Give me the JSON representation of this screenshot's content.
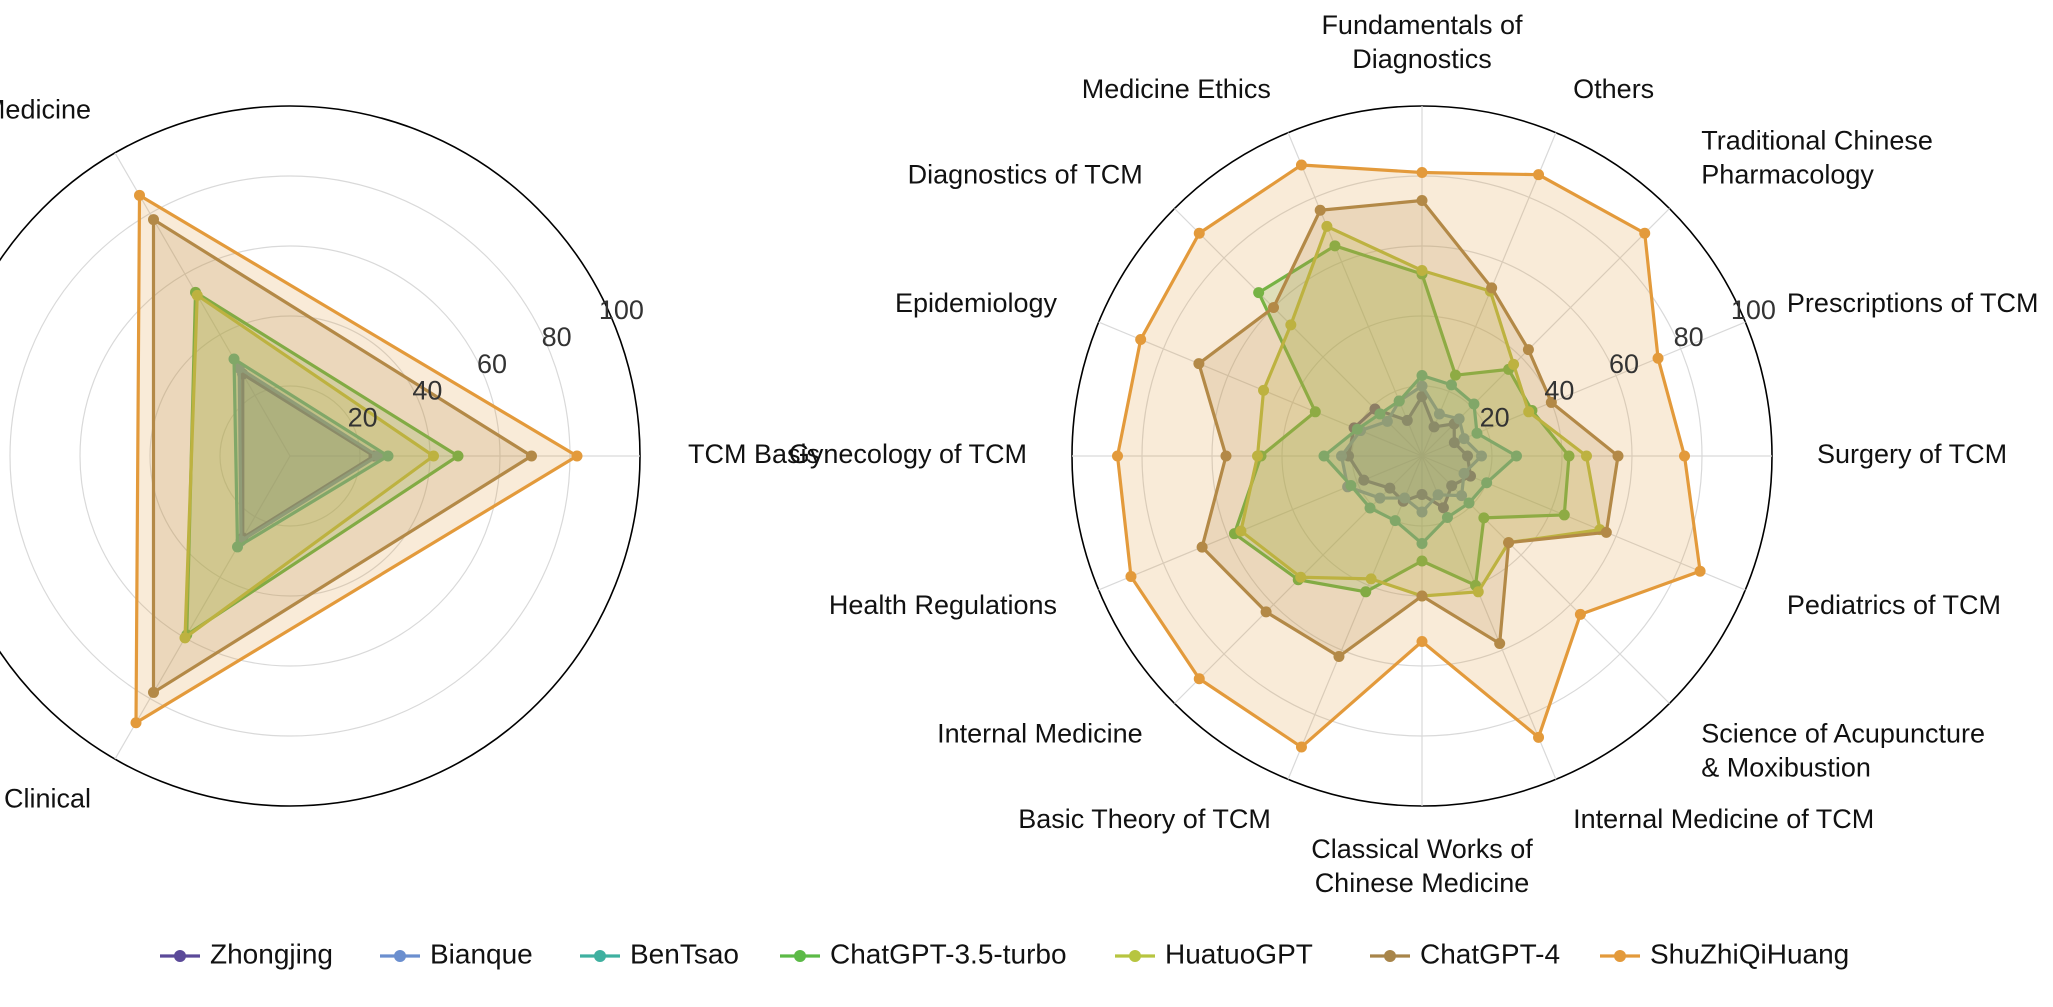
{
  "chart_data": [
    {
      "type": "radar",
      "title": "",
      "rlim": [
        0,
        100
      ],
      "rticks": [
        "20",
        "40",
        "60",
        "80",
        "100"
      ],
      "grid": true,
      "categories": [
        "TCM Basis",
        "TCM Clinical Medicine",
        "Western Medicine & Clinical"
      ],
      "series": [
        {
          "name": "Zhongjing",
          "values": [
            24,
            27,
            27
          ]
        },
        {
          "name": "Bianque",
          "values": [
            25,
            29,
            28
          ]
        },
        {
          "name": "BenTsao",
          "values": [
            28,
            32,
            30
          ]
        },
        {
          "name": "ChatGPT-3.5-turbo",
          "values": [
            48,
            54,
            59
          ]
        },
        {
          "name": "HuatuoGPT",
          "values": [
            41,
            53,
            60
          ]
        },
        {
          "name": "ChatGPT-4",
          "values": [
            69,
            78,
            78
          ]
        },
        {
          "name": "ShuZhiQiHuang",
          "values": [
            82,
            86,
            88
          ]
        }
      ]
    },
    {
      "type": "radar",
      "title": "",
      "rlim": [
        0,
        100
      ],
      "rticks": [
        "20",
        "40",
        "60",
        "80",
        "100"
      ],
      "grid": true,
      "categories": [
        "Surgery of TCM",
        "Prescriptions of TCM",
        "Traditional Chinese\nPharmacology",
        "Others",
        "Fundamentals of\nDiagnostics",
        "Medicine Ethics",
        "Diagnostics of TCM",
        "Epidemiology",
        "Gynecology of TCM",
        "Health Regulations",
        "Internal Medicine",
        "Basic Theory of TCM",
        "Classical Works of\nChinese Medicine",
        "Internal Medicine of TCM",
        "Science of Acupuncture\n& Moxibustion",
        "Pediatrics of TCM"
      ],
      "series": [
        {
          "name": "Zhongjing",
          "values": [
            13,
            10,
            13,
            9,
            17,
            11,
            19,
            21,
            21,
            18,
            13,
            14,
            11,
            16,
            12,
            15
          ]
        },
        {
          "name": "Bianque",
          "values": [
            17,
            13,
            15,
            13,
            20,
            17,
            14,
            19,
            23,
            23,
            17,
            13,
            16,
            12,
            16,
            13
          ]
        },
        {
          "name": "BenTsao",
          "values": [
            27,
            17,
            21,
            22,
            23,
            17,
            17,
            20,
            28,
            22,
            21,
            20,
            25,
            19,
            19,
            20
          ]
        },
        {
          "name": "ChatGPT-3.5-turbo",
          "values": [
            42,
            34,
            35,
            25,
            52,
            65,
            66,
            33,
            46,
            58,
            50,
            42,
            30,
            40,
            25,
            44
          ]
        },
        {
          "name": "HuatuoGPT",
          "values": [
            47,
            33,
            37,
            51,
            53,
            71,
            53,
            49,
            47,
            56,
            49,
            38,
            40,
            42,
            35,
            55
          ]
        },
        {
          "name": "ChatGPT-4",
          "values": [
            56,
            40,
            43,
            52,
            73,
            76,
            60,
            69,
            56,
            68,
            63,
            62,
            40,
            58,
            35,
            57
          ]
        },
        {
          "name": "ShuZhiQiHuang",
          "values": [
            75,
            73,
            90,
            87,
            81,
            90,
            90,
            87,
            87,
            90,
            90,
            90,
            53,
            87,
            64,
            86
          ]
        }
      ]
    }
  ],
  "legend": {
    "placement": "bottom",
    "entries": [
      "Zhongjing",
      "Bianque",
      "BenTsao",
      "ChatGPT-3.5-turbo",
      "HuatuoGPT",
      "ChatGPT-4",
      "ShuZhiQiHuang"
    ]
  },
  "colors": {
    "Zhongjing": "#5b4a99",
    "Bianque": "#6b8fcf",
    "BenTsao": "#3fb0a0",
    "ChatGPT-3.5-turbo": "#5cba47",
    "HuatuoGPT": "#b7c540",
    "ChatGPT-4": "#a8854a",
    "ShuZhiQiHuang": "#e39a3b",
    "grid": "#d9d9d9",
    "frame": "#000000"
  }
}
